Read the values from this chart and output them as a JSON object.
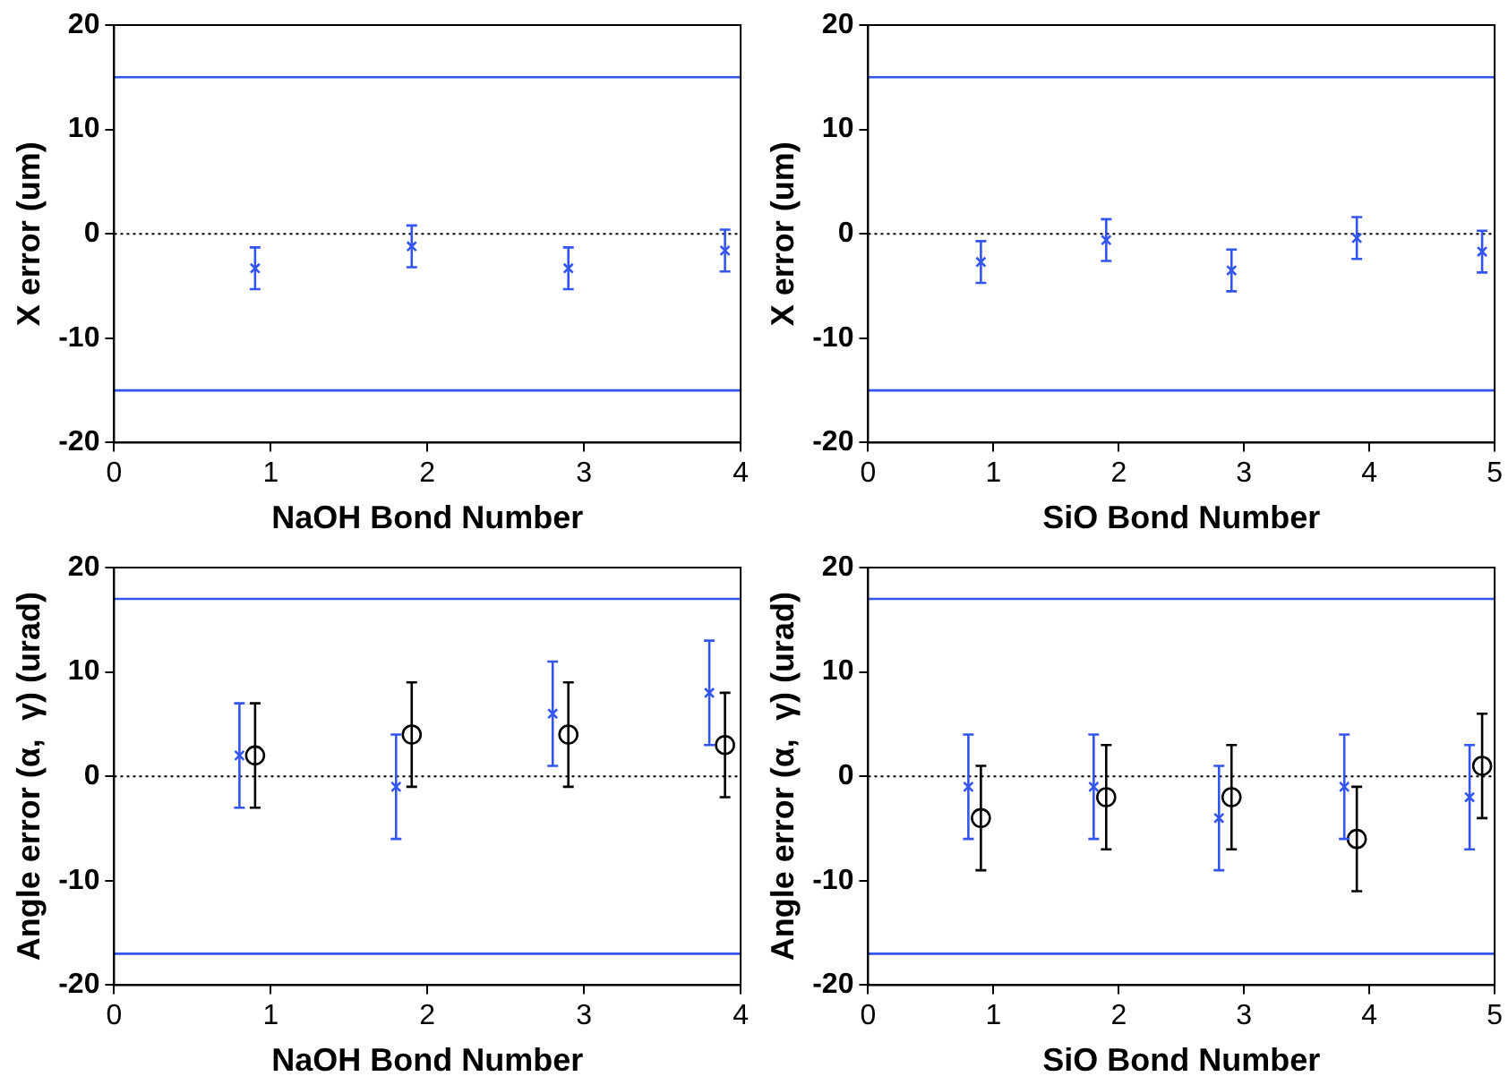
{
  "chart_data": [
    {
      "type": "scatter",
      "xlabel": "NaOH Bond Number",
      "ylabel": "X error (um)",
      "xlim": [
        0,
        4
      ],
      "xticks": [
        0,
        1,
        2,
        3,
        4
      ],
      "ylim": [
        -20,
        20
      ],
      "yticks": [
        -20,
        -10,
        0,
        10,
        20
      ],
      "grid": false,
      "legend": false,
      "ref_lines": [
        {
          "axis": "y",
          "value": 15,
          "color": "#3355ee",
          "line_style": "solid"
        },
        {
          "axis": "y",
          "value": -15,
          "color": "#3355ee",
          "line_style": "solid"
        },
        {
          "axis": "y",
          "value": 0,
          "color": "#000000",
          "line_style": "dotted"
        }
      ],
      "series": [
        {
          "color": "#3355ee",
          "marker": "cross",
          "x": [
            0.9,
            1.9,
            2.9,
            3.9
          ],
          "values": [
            -3.3,
            -1.2,
            -3.3,
            -1.6
          ],
          "errors": [
            2,
            2,
            2,
            2
          ]
        }
      ]
    },
    {
      "type": "scatter",
      "xlabel": "SiO Bond Number",
      "ylabel": "X error (um)",
      "xlim": [
        0,
        5
      ],
      "xticks": [
        0,
        1,
        2,
        3,
        4,
        5
      ],
      "ylim": [
        -20,
        20
      ],
      "yticks": [
        -20,
        -10,
        0,
        10,
        20
      ],
      "grid": false,
      "legend": false,
      "ref_lines": [
        {
          "axis": "y",
          "value": 15,
          "color": "#3355ee",
          "line_style": "solid"
        },
        {
          "axis": "y",
          "value": -15,
          "color": "#3355ee",
          "line_style": "solid"
        },
        {
          "axis": "y",
          "value": 0,
          "color": "#000000",
          "line_style": "dotted"
        }
      ],
      "series": [
        {
          "color": "#3355ee",
          "marker": "cross",
          "x": [
            0.9,
            1.9,
            2.9,
            3.9,
            4.9
          ],
          "values": [
            -2.7,
            -0.6,
            -3.5,
            -0.4,
            -1.7
          ],
          "errors": [
            2,
            2,
            2,
            2,
            2
          ]
        }
      ]
    },
    {
      "type": "scatter",
      "xlabel": "NaOH Bond Number",
      "ylabel": "Angle error (α,  γ) (urad)",
      "xlim": [
        0,
        4
      ],
      "xticks": [
        0,
        1,
        2,
        3,
        4
      ],
      "ylim": [
        -20,
        20
      ],
      "yticks": [
        -20,
        -10,
        0,
        10,
        20
      ],
      "grid": false,
      "legend": false,
      "ref_lines": [
        {
          "axis": "y",
          "value": 17,
          "color": "#3355ee",
          "line_style": "solid"
        },
        {
          "axis": "y",
          "value": -17,
          "color": "#3355ee",
          "line_style": "solid"
        },
        {
          "axis": "y",
          "value": 0,
          "color": "#000000",
          "line_style": "dotted"
        }
      ],
      "series": [
        {
          "color": "#3355ee",
          "marker": "cross",
          "x": [
            0.8,
            1.8,
            2.8,
            3.8
          ],
          "values": [
            2,
            -1,
            6,
            8
          ],
          "errors": [
            5,
            5,
            5,
            5
          ]
        },
        {
          "color": "#000000",
          "marker": "circle",
          "x": [
            0.9,
            1.9,
            2.9,
            3.9
          ],
          "values": [
            2,
            4,
            4,
            3
          ],
          "errors": [
            5,
            5,
            5,
            5
          ]
        }
      ]
    },
    {
      "type": "scatter",
      "xlabel": "SiO Bond Number",
      "ylabel": "Angle error (α,  γ) (urad)",
      "xlim": [
        0,
        5
      ],
      "xticks": [
        0,
        1,
        2,
        3,
        4,
        5
      ],
      "ylim": [
        -20,
        20
      ],
      "yticks": [
        -20,
        -10,
        0,
        10,
        20
      ],
      "grid": false,
      "legend": false,
      "ref_lines": [
        {
          "axis": "y",
          "value": 17,
          "color": "#3355ee",
          "line_style": "solid"
        },
        {
          "axis": "y",
          "value": -17,
          "color": "#3355ee",
          "line_style": "solid"
        },
        {
          "axis": "y",
          "value": 0,
          "color": "#000000",
          "line_style": "dotted"
        }
      ],
      "series": [
        {
          "color": "#3355ee",
          "marker": "cross",
          "x": [
            0.8,
            1.8,
            2.8,
            3.8,
            4.8
          ],
          "values": [
            -1,
            -1,
            -4,
            -1,
            -2
          ],
          "errors": [
            5,
            5,
            5,
            5,
            5
          ]
        },
        {
          "color": "#000000",
          "marker": "circle",
          "x": [
            0.9,
            1.9,
            2.9,
            3.9,
            4.9
          ],
          "values": [
            -4,
            -2,
            -2,
            -6,
            1
          ],
          "errors": [
            5,
            5,
            5,
            5,
            5
          ]
        }
      ]
    }
  ]
}
